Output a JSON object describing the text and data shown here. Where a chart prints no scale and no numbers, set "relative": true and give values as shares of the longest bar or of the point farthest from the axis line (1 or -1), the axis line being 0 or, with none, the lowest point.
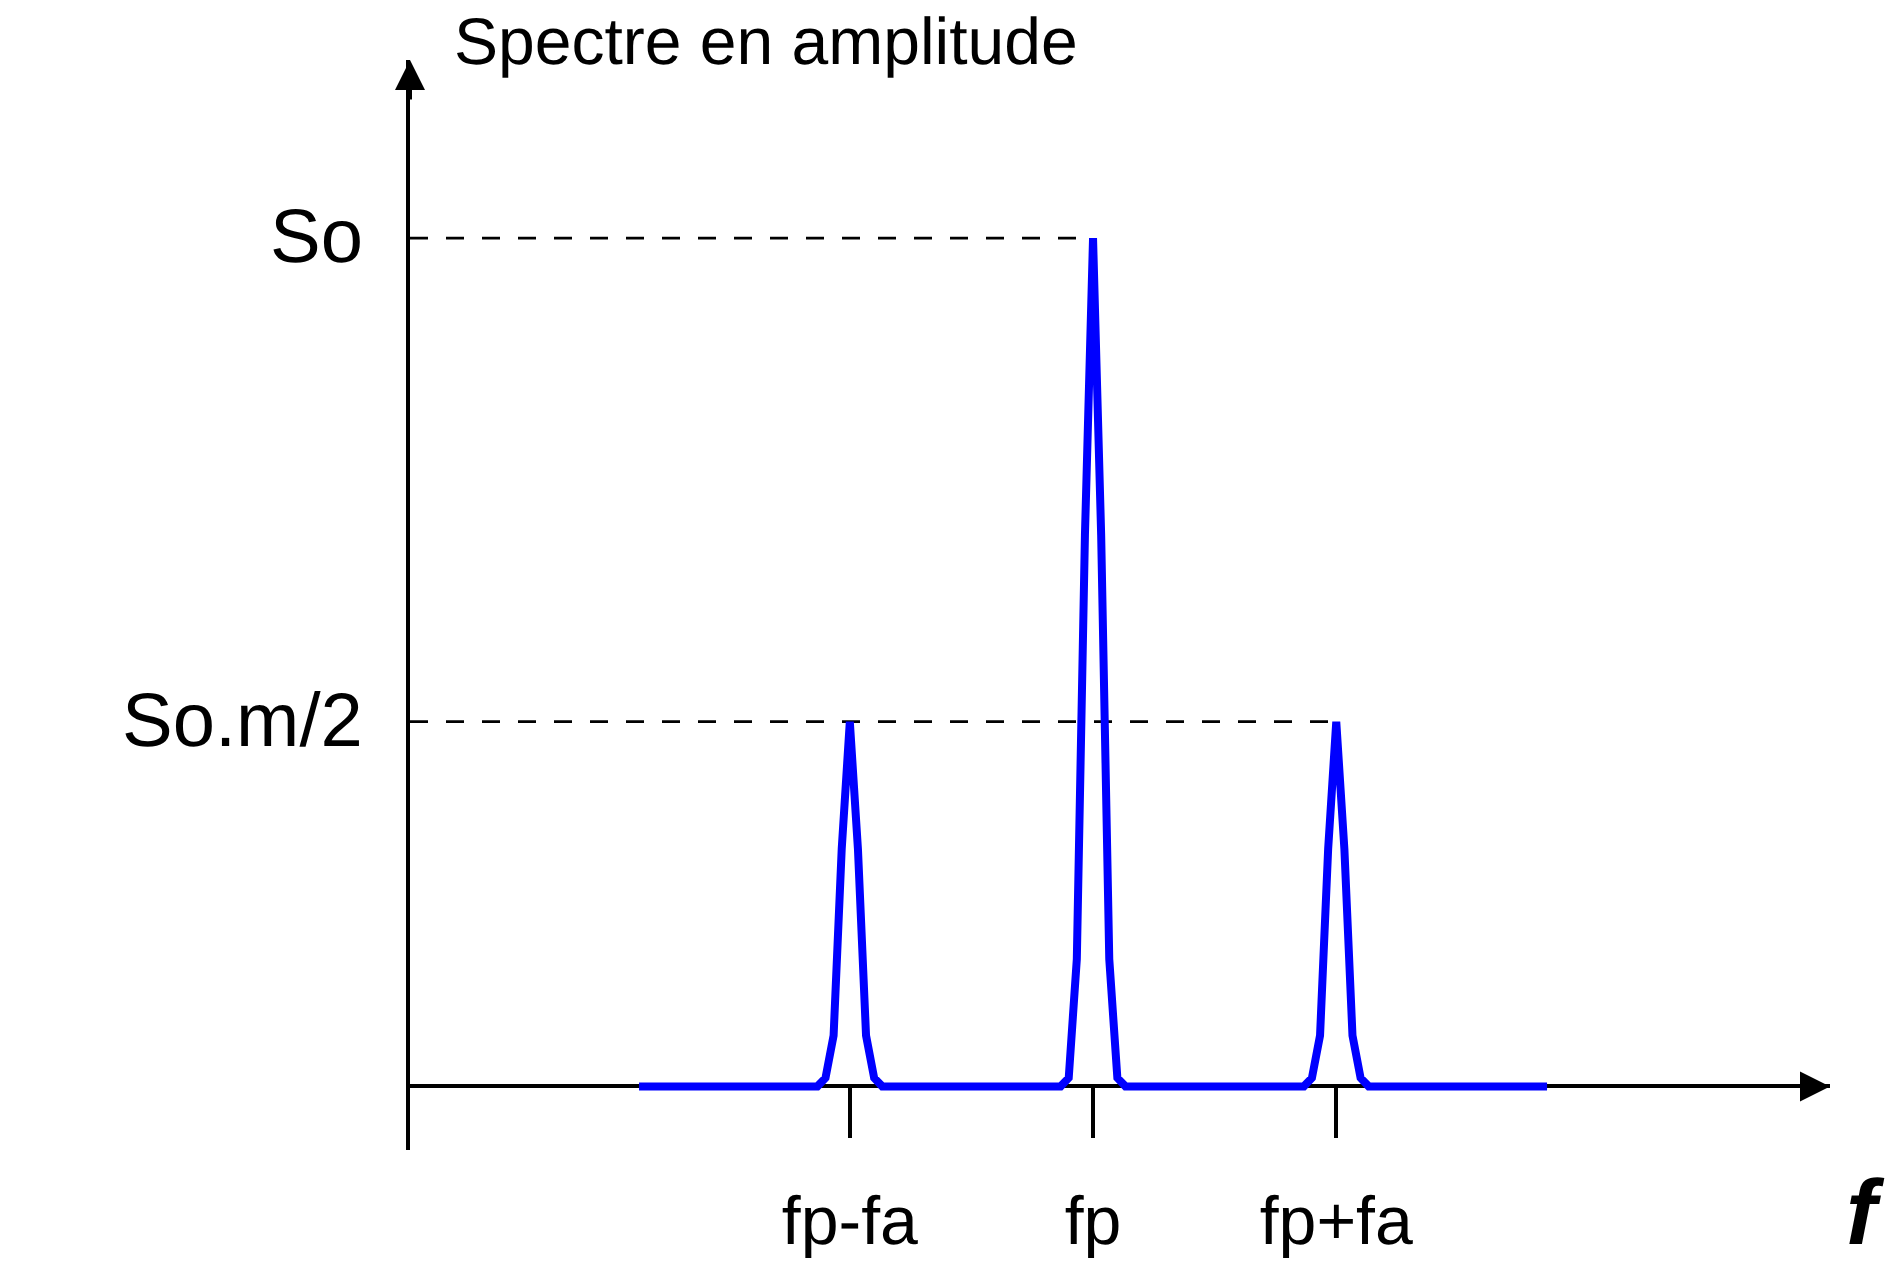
{
  "chart_data": {
    "type": "line",
    "relative": true,
    "ylabel": "Spectre en amplitude",
    "xlabel": "f",
    "categories": [
      null,
      null,
      null,
      null,
      null,
      null,
      null,
      null,
      null,
      null,
      null,
      null,
      null,
      null,
      null,
      null,
      null,
      null,
      null,
      null,
      null,
      null,
      null,
      null,
      null,
      null,
      "fp-fa",
      null,
      null,
      null,
      null,
      null,
      null,
      null,
      null,
      null,
      null,
      null,
      null,
      null,
      null,
      null,
      null,
      null,
      null,
      null,
      null,
      null,
      null,
      null,
      null,
      null,
      null,
      null,
      null,
      null,
      "fp",
      null,
      null,
      null,
      null,
      null,
      null,
      null,
      null,
      null,
      null,
      null,
      null,
      null,
      null,
      null,
      null,
      null,
      null,
      null,
      null,
      null,
      null,
      null,
      null,
      null,
      null,
      null,
      null,
      null,
      "fp+fa",
      null,
      null,
      null,
      null,
      null,
      null,
      null,
      null,
      null,
      null,
      null,
      null,
      null,
      null,
      null,
      null,
      null,
      null,
      null,
      null,
      null,
      null,
      null,
      null,
      null,
      null
    ],
    "series": [
      {
        "color": "#0000ff",
        "values": [
          0,
          0,
          0,
          0,
          0,
          0,
          0,
          0,
          0,
          0,
          0,
          0,
          0,
          0,
          0,
          0,
          0,
          0,
          0,
          0,
          0,
          0,
          0,
          0.01,
          0.06,
          0.28,
          0.43,
          0.28,
          0.06,
          0.01,
          0,
          0,
          0,
          0,
          0,
          0,
          0,
          0,
          0,
          0,
          0,
          0,
          0,
          0,
          0,
          0,
          0,
          0,
          0,
          0,
          0,
          0,
          0,
          0.01,
          0.15,
          0.65,
          1,
          0.65,
          0.15,
          0.01,
          0,
          0,
          0,
          0,
          0,
          0,
          0,
          0,
          0,
          0,
          0,
          0,
          0,
          0,
          0,
          0,
          0,
          0,
          0,
          0,
          0,
          0,
          0,
          0.01,
          0.06,
          0.28,
          0.43,
          0.28,
          0.06,
          0.01,
          0,
          0,
          0,
          0,
          0,
          0,
          0,
          0,
          0,
          0,
          0,
          0,
          0,
          0,
          0,
          0,
          0,
          0,
          0,
          0,
          0,
          0,
          0
        ]
      }
    ],
    "ref_lines": [
      {
        "axis": "y",
        "value": 1,
        "label": "So",
        "line_style": "dashed"
      },
      {
        "axis": "y",
        "value": 0.43,
        "label": "So.m/2",
        "line_style": "dashed"
      }
    ],
    "grid": false,
    "marker": "none",
    "line_style": "solid"
  }
}
